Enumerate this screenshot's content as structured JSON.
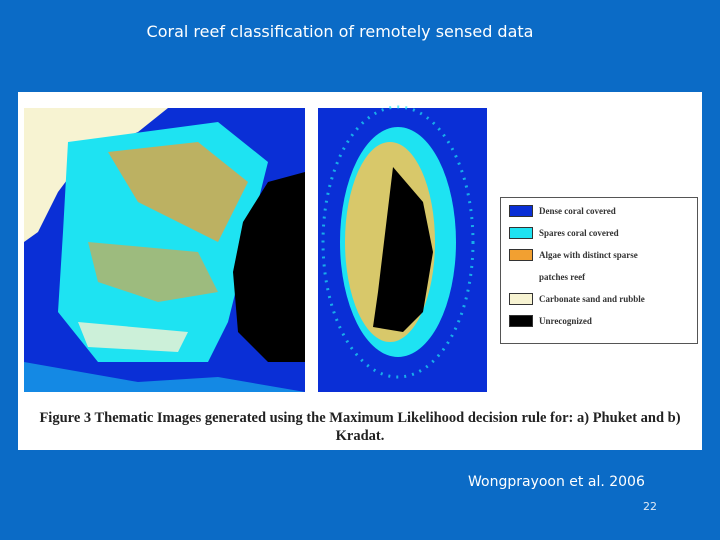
{
  "title": "Coral reef classification of remotely sensed data",
  "figure": {
    "legend": [
      {
        "label": "Dense coral covered",
        "color": "#0a2fd6"
      },
      {
        "label": "Spares coral covered",
        "color": "#1ee3f2"
      },
      {
        "label": "Algae with distinct sparse",
        "color": "#f2a031"
      },
      {
        "label": "patches reef"
      },
      {
        "label": "Carbonate sand and rubble",
        "color": "#f7f3d2"
      },
      {
        "label": "Unrecognized",
        "color": "#000000"
      }
    ],
    "caption": [
      "Figure 3 Thematic Images generated using the Maximum Likelihood decision rule for: a) Phuket and b)",
      "Kradat."
    ]
  },
  "footer": {
    "citation": "Wongprayoon et al. 2006",
    "page_number": "22"
  }
}
